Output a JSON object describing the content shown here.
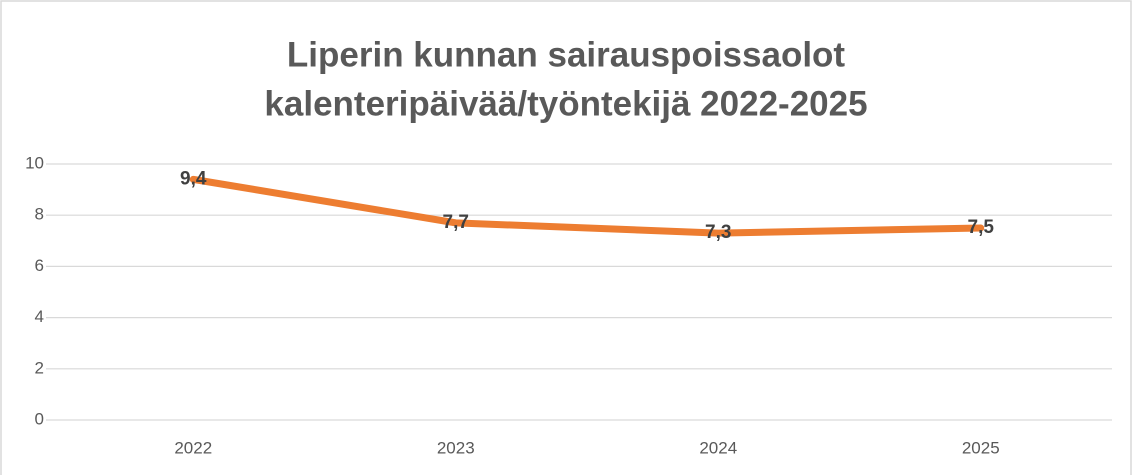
{
  "chart_data": {
    "type": "line",
    "title": [
      "Liperin kunnan sairauspoissaolot",
      "kalenteripäivää/työntekijä 2022-2025"
    ],
    "categories": [
      "2022",
      "2023",
      "2024",
      "2025"
    ],
    "series": [
      {
        "color": "#ed7d31",
        "values": [
          9.4,
          7.7,
          7.3,
          7.5
        ],
        "value_labels": [
          "9,4",
          "7,7",
          "7,3",
          "7,5"
        ]
      }
    ],
    "ylim": [
      0,
      10
    ],
    "yticks": [
      0,
      2,
      4,
      6,
      8,
      10
    ],
    "grid": true
  }
}
